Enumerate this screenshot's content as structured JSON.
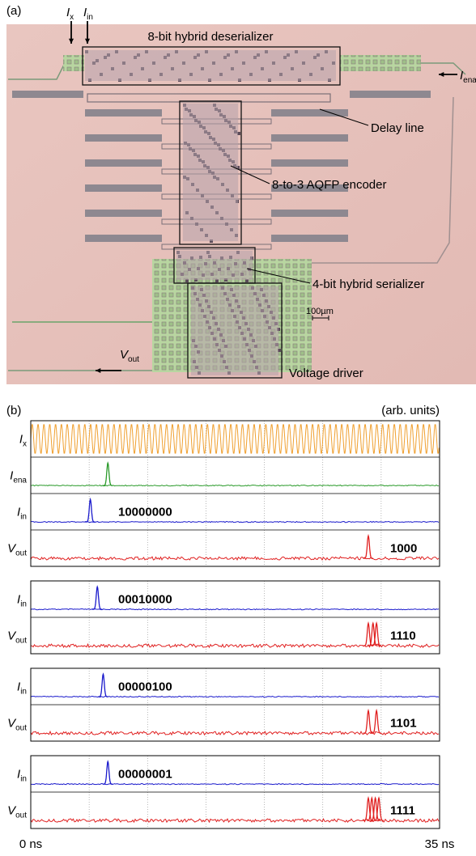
{
  "panel_a": {
    "label": "(a)",
    "I_x": {
      "symbol": "I",
      "sub": "x"
    },
    "I_in": {
      "symbol": "I",
      "sub": "in"
    },
    "I_ena": {
      "symbol": "I",
      "sub": "ena"
    },
    "V_out": {
      "symbol": "V",
      "sub": "out"
    },
    "deserializer": "8-bit hybrid deserializer",
    "delay_line": "Delay line",
    "encoder": "8-to-3 AQFP encoder",
    "serializer": "4-bit hybrid serializer",
    "scale_bar": "100µm",
    "driver": "Voltage driver"
  },
  "panel_b": {
    "label": "(b)",
    "units_note": "(arb. units)",
    "xlim": [
      0,
      35
    ],
    "xticks": [
      {
        "value": 0,
        "label": "0 ns"
      },
      {
        "value": 35,
        "label": "35 ns"
      }
    ],
    "grid_x": [
      5,
      10,
      15,
      20,
      25,
      30
    ],
    "groups": [
      {
        "traces": [
          {
            "symbol": "I",
            "sub": "x",
            "color": "#f0a030",
            "period_ns": 0.5
          },
          {
            "symbol": "I",
            "sub": "ena",
            "color": "#2a9a2a",
            "pulses_ns": [
              6.6
            ]
          },
          {
            "symbol": "I",
            "sub": "in",
            "color": "#1a1acc",
            "pulses_ns": [
              5.1
            ],
            "code": "10000000"
          },
          {
            "symbol": "V",
            "sub": "out",
            "color": "#e02020",
            "pulses_ns": [
              28.9
            ],
            "code": "1000"
          }
        ]
      },
      {
        "traces": [
          {
            "symbol": "I",
            "sub": "in",
            "color": "#1a1acc",
            "pulses_ns": [
              5.7
            ],
            "code": "00010000"
          },
          {
            "symbol": "V",
            "sub": "out",
            "color": "#e02020",
            "pulses_ns": [
              28.9,
              29.3,
              29.6
            ],
            "code": "1110"
          }
        ]
      },
      {
        "traces": [
          {
            "symbol": "I",
            "sub": "in",
            "color": "#1a1acc",
            "pulses_ns": [
              6.2
            ],
            "code": "00000100"
          },
          {
            "symbol": "V",
            "sub": "out",
            "color": "#e02020",
            "pulses_ns": [
              28.9,
              29.6
            ],
            "code": "1101"
          }
        ]
      },
      {
        "traces": [
          {
            "symbol": "I",
            "sub": "in",
            "color": "#1a1acc",
            "pulses_ns": [
              6.6
            ],
            "code": "00000001"
          },
          {
            "symbol": "V",
            "sub": "out",
            "color": "#e02020",
            "pulses_ns": [
              28.9,
              29.2,
              29.5,
              29.8
            ],
            "code": "1111"
          }
        ]
      }
    ]
  }
}
